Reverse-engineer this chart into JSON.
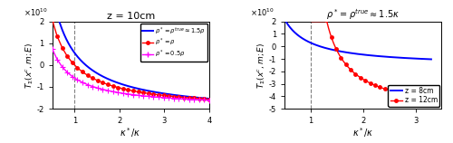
{
  "left_title": "z = 10cm",
  "right_title": "$\\rho^* = \\rho^{true} \\approx 1.5\\kappa$",
  "ylabel": "$T_{\\Sigma}(x^c,m;E)$",
  "xlabel": "$\\kappa^*/\\kappa$",
  "ylim_left": [
    -20000000000.0,
    20000000000.0
  ],
  "ylim_right": [
    -50000000000.0,
    20000000000.0
  ],
  "xlim_left": [
    0.5,
    4.0
  ],
  "xlim_right": [
    0.5,
    3.5
  ],
  "dashed_x": 1.0,
  "yticks_left": [
    -20000000000.0,
    -10000000000.0,
    0,
    10000000000.0,
    20000000000.0
  ],
  "ytick_labels_left": [
    "-2",
    "-1",
    "0",
    "1",
    "2"
  ],
  "yticks_right": [
    -50000000000.0,
    -40000000000.0,
    -30000000000.0,
    -20000000000.0,
    -10000000000.0,
    0,
    10000000000.0,
    20000000000.0
  ],
  "ytick_labels_right": [
    "-5",
    "-4",
    "-3",
    "-2",
    "-1",
    "0",
    "1",
    "2"
  ],
  "xticks_left": [
    1,
    2,
    3,
    4
  ],
  "xtick_labels_left": [
    "1",
    "2",
    "3",
    "4"
  ],
  "xticks_right": [
    1,
    2,
    3
  ],
  "xtick_labels_right": [
    "1",
    "2",
    "3"
  ],
  "left_legend": [
    {
      "label": "$\\rho^* = \\rho^{true} \\approx 1.5\\rho$",
      "color": "blue",
      "lw": 1.4,
      "marker": "none"
    },
    {
      "label": "$\\rho^* = \\rho$",
      "color": "red",
      "lw": 1.0,
      "marker": "o"
    },
    {
      "label": "$\\rho^* = 0.5\\rho$",
      "color": "magenta",
      "lw": 1.0,
      "marker": "+"
    }
  ],
  "right_legend": [
    {
      "label": "z = 8cm",
      "color": "blue",
      "lw": 1.4,
      "marker": "none"
    },
    {
      "label": "z = 12cm",
      "color": "red",
      "lw": 1.0,
      "marker": "o"
    }
  ],
  "bg_color": "white"
}
